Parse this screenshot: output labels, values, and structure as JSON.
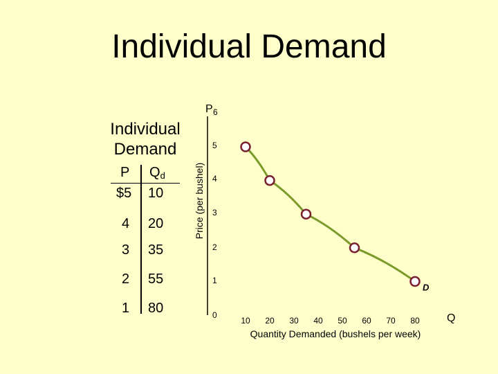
{
  "title": "Individual Demand",
  "table": {
    "title": "Individual Demand",
    "header_p": "P",
    "header_q": "Q",
    "header_q_sub": "d",
    "rows": [
      {
        "p": "$5",
        "q": "10"
      },
      {
        "p": "4",
        "q": "20"
      },
      {
        "p": "3",
        "q": "35"
      },
      {
        "p": "2",
        "q": "55"
      },
      {
        "p": "1",
        "q": "80"
      }
    ]
  },
  "chart_data": {
    "type": "line",
    "y_axis_letter": "P",
    "x_axis_letter": "Q",
    "ylabel": "Price (per bushel)",
    "xlabel": "Quantity Demanded (bushels per week)",
    "y_ticks": [
      "0",
      "1",
      "2",
      "3",
      "4",
      "5",
      "6"
    ],
    "x_ticks": [
      "10",
      "20",
      "30",
      "40",
      "50",
      "60",
      "70",
      "80"
    ],
    "xlim": [
      0,
      80
    ],
    "ylim": [
      0,
      6
    ],
    "curve_label": "D",
    "series": [
      {
        "x": [
          10,
          20,
          35,
          55,
          80
        ],
        "y": [
          5,
          4,
          3,
          2,
          1
        ]
      }
    ],
    "line_color": "#7a9a2a",
    "marker_fill": "#ffffff",
    "marker_stroke": "#7a2030"
  }
}
